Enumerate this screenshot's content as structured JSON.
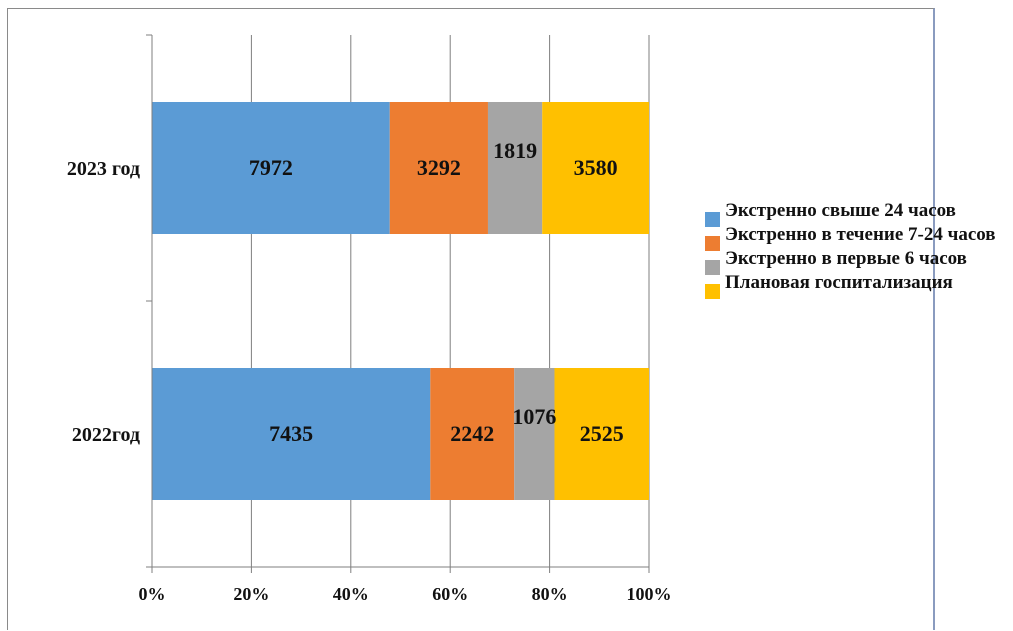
{
  "chart_data": {
    "type": "bar",
    "orientation": "horizontal",
    "stacked": "percent",
    "categories": [
      "2023 год",
      "2022год"
    ],
    "series": [
      {
        "name": "Экстренно свыше 24 часов",
        "values": [
          7972,
          7435
        ],
        "color": "#5b9bd5"
      },
      {
        "name": "Экстренно в течение 7-24 часов",
        "values": [
          3292,
          2242
        ],
        "color": "#ed7d31"
      },
      {
        "name": "Экстренно в первые 6 часов",
        "values": [
          1819,
          1076
        ],
        "color": "#a5a5a5"
      },
      {
        "name": "Плановая госпитализация",
        "values": [
          3580,
          2525
        ],
        "color": "#ffc000"
      }
    ],
    "x_ticks": [
      "0%",
      "20%",
      "40%",
      "60%",
      "80%",
      "100%"
    ],
    "xlim": [
      0,
      100
    ],
    "grid": "vertical",
    "legend": "right",
    "title": "",
    "xlabel": "",
    "ylabel": ""
  }
}
